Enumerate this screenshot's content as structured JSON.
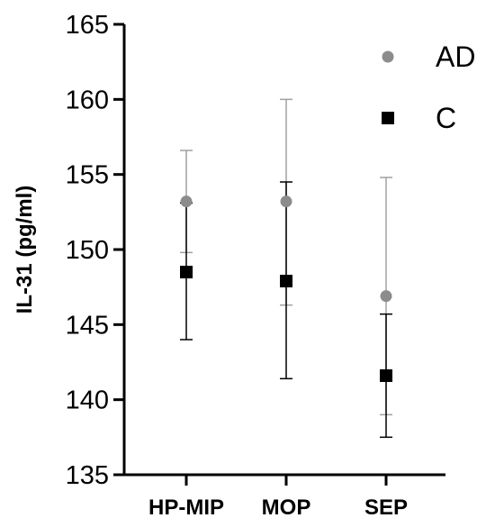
{
  "chart_data": {
    "type": "scatter",
    "title": "",
    "xlabel": "",
    "ylabel": "IL-31 (pg/ml)",
    "categories": [
      "HP-MIP",
      "MOP",
      "SEP"
    ],
    "ylim": [
      135,
      165
    ],
    "yticks": [
      "135",
      "140",
      "145",
      "150",
      "155",
      "160",
      "165"
    ],
    "grid": false,
    "legend_position": "top-right",
    "series": [
      {
        "name": "AD",
        "marker": "circle",
        "color": "#8c8c8c",
        "values": [
          153.2,
          153.2,
          146.9
        ],
        "err_low": [
          149.8,
          146.3,
          139.0
        ],
        "err_high": [
          156.6,
          160.0,
          154.8
        ]
      },
      {
        "name": "C",
        "marker": "square",
        "color": "#000000",
        "values": [
          148.5,
          147.9,
          141.6
        ],
        "err_low": [
          144.0,
          141.4,
          137.5
        ],
        "err_high": [
          153.1,
          154.5,
          145.7
        ]
      }
    ]
  }
}
